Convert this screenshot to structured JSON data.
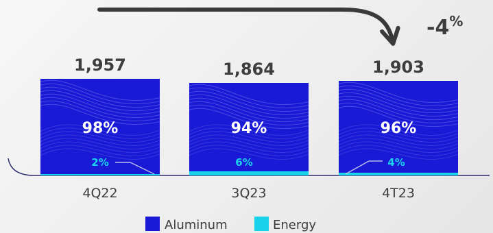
{
  "chart_data": {
    "type": "bar",
    "stacked": true,
    "categories": [
      "4Q22",
      "3Q23",
      "4T23"
    ],
    "totals": [
      "1,957",
      "1,864",
      "1,903"
    ],
    "series": [
      {
        "name": "Aluminum",
        "percent_labels": [
          "98%",
          "94%",
          "96%"
        ],
        "shares": [
          98,
          94,
          96
        ]
      },
      {
        "name": "Energy",
        "percent_labels": [
          "2%",
          "6%",
          "4%"
        ],
        "shares": [
          2,
          6,
          4
        ]
      }
    ],
    "change": {
      "value": "-4",
      "unit": "%"
    },
    "legend_placement": "bottom"
  },
  "colors": {
    "aluminum": "#1a1ad6",
    "energy": "#19d3ea",
    "axis": "#2a2a6b",
    "text": "#3d3d3d",
    "arrow": "#3a3a3a"
  }
}
